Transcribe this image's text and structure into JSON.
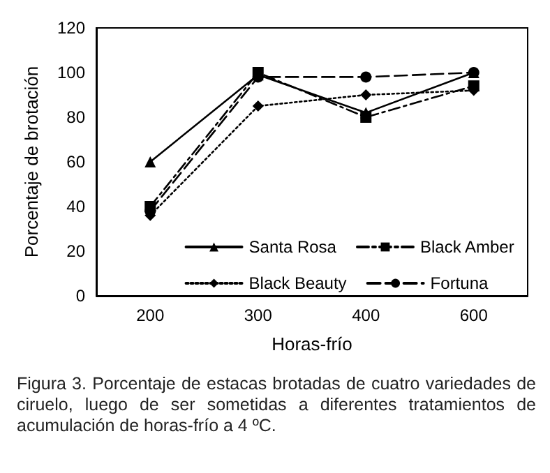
{
  "chart_data": {
    "type": "line",
    "xlabel": "Horas-frío",
    "ylabel": "Porcentaje de brotación",
    "categories": [
      "200",
      "300",
      "400",
      "600"
    ],
    "ylim": [
      0,
      120
    ],
    "yticks": [
      0,
      20,
      40,
      60,
      80,
      100,
      120
    ],
    "grid": false,
    "legend": "bottom right",
    "series": [
      {
        "name": "Santa Rosa",
        "color": "#000000",
        "marker": "triangle",
        "line_style": "solid",
        "values": [
          60,
          99,
          82,
          100
        ]
      },
      {
        "name": "Black Amber",
        "color": "#000000",
        "marker": "square",
        "line_style": "dashdot",
        "values": [
          40,
          100,
          80,
          94
        ]
      },
      {
        "name": "Black Beauty",
        "color": "#000000",
        "marker": "diamond",
        "line_style": "dotted",
        "values": [
          36,
          85,
          90,
          92
        ]
      },
      {
        "name": "Fortuna",
        "color": "#000000",
        "marker": "circle",
        "line_style": "dashed",
        "values": [
          38,
          98,
          98,
          100
        ]
      }
    ],
    "annotations": [
      "Figura 3. Porcentaje de estacas brotadas de cuatro variedades de ciruelo, luego de ser sometidas a diferentes tratamientos de acumulación de horas-frío a 4 ºC."
    ]
  }
}
